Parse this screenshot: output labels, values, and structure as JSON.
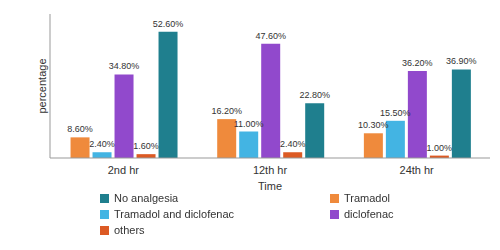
{
  "chart_data": {
    "type": "bar",
    "xlabel": "Time",
    "ylabel": "percentage",
    "categories": [
      "2nd hr",
      "12th hr",
      "24th hr"
    ],
    "series": [
      {
        "name": "Tramadol",
        "color": "#ef8a3c",
        "values": [
          8.6,
          16.2,
          10.3
        ],
        "value_labels": [
          "8.60%",
          "16.20%",
          "10.30%"
        ]
      },
      {
        "name": "Tramadol and diclofenac",
        "color": "#43b4e3",
        "values": [
          2.4,
          11.0,
          15.5
        ],
        "value_labels": [
          "2.40%",
          "11.00%",
          "15.50%"
        ]
      },
      {
        "name": "diclofenac",
        "color": "#9149cc",
        "values": [
          34.8,
          47.6,
          36.2
        ],
        "value_labels": [
          "34.80%",
          "47.60%",
          "36.20%"
        ]
      },
      {
        "name": "others",
        "color": "#dc5a24",
        "values": [
          1.6,
          2.4,
          1.0
        ],
        "value_labels": [
          "1.60%",
          "2.40%",
          "1.00%"
        ]
      },
      {
        "name": "No analgesia",
        "color": "#1f7f8e",
        "values": [
          52.6,
          22.8,
          36.9
        ],
        "value_labels": [
          "52.60%",
          "22.80%",
          "36.90%"
        ]
      }
    ],
    "ylim": [
      0,
      60
    ],
    "grid": false,
    "data_labels": true,
    "tick_labels": "x",
    "legend": "bottom"
  }
}
